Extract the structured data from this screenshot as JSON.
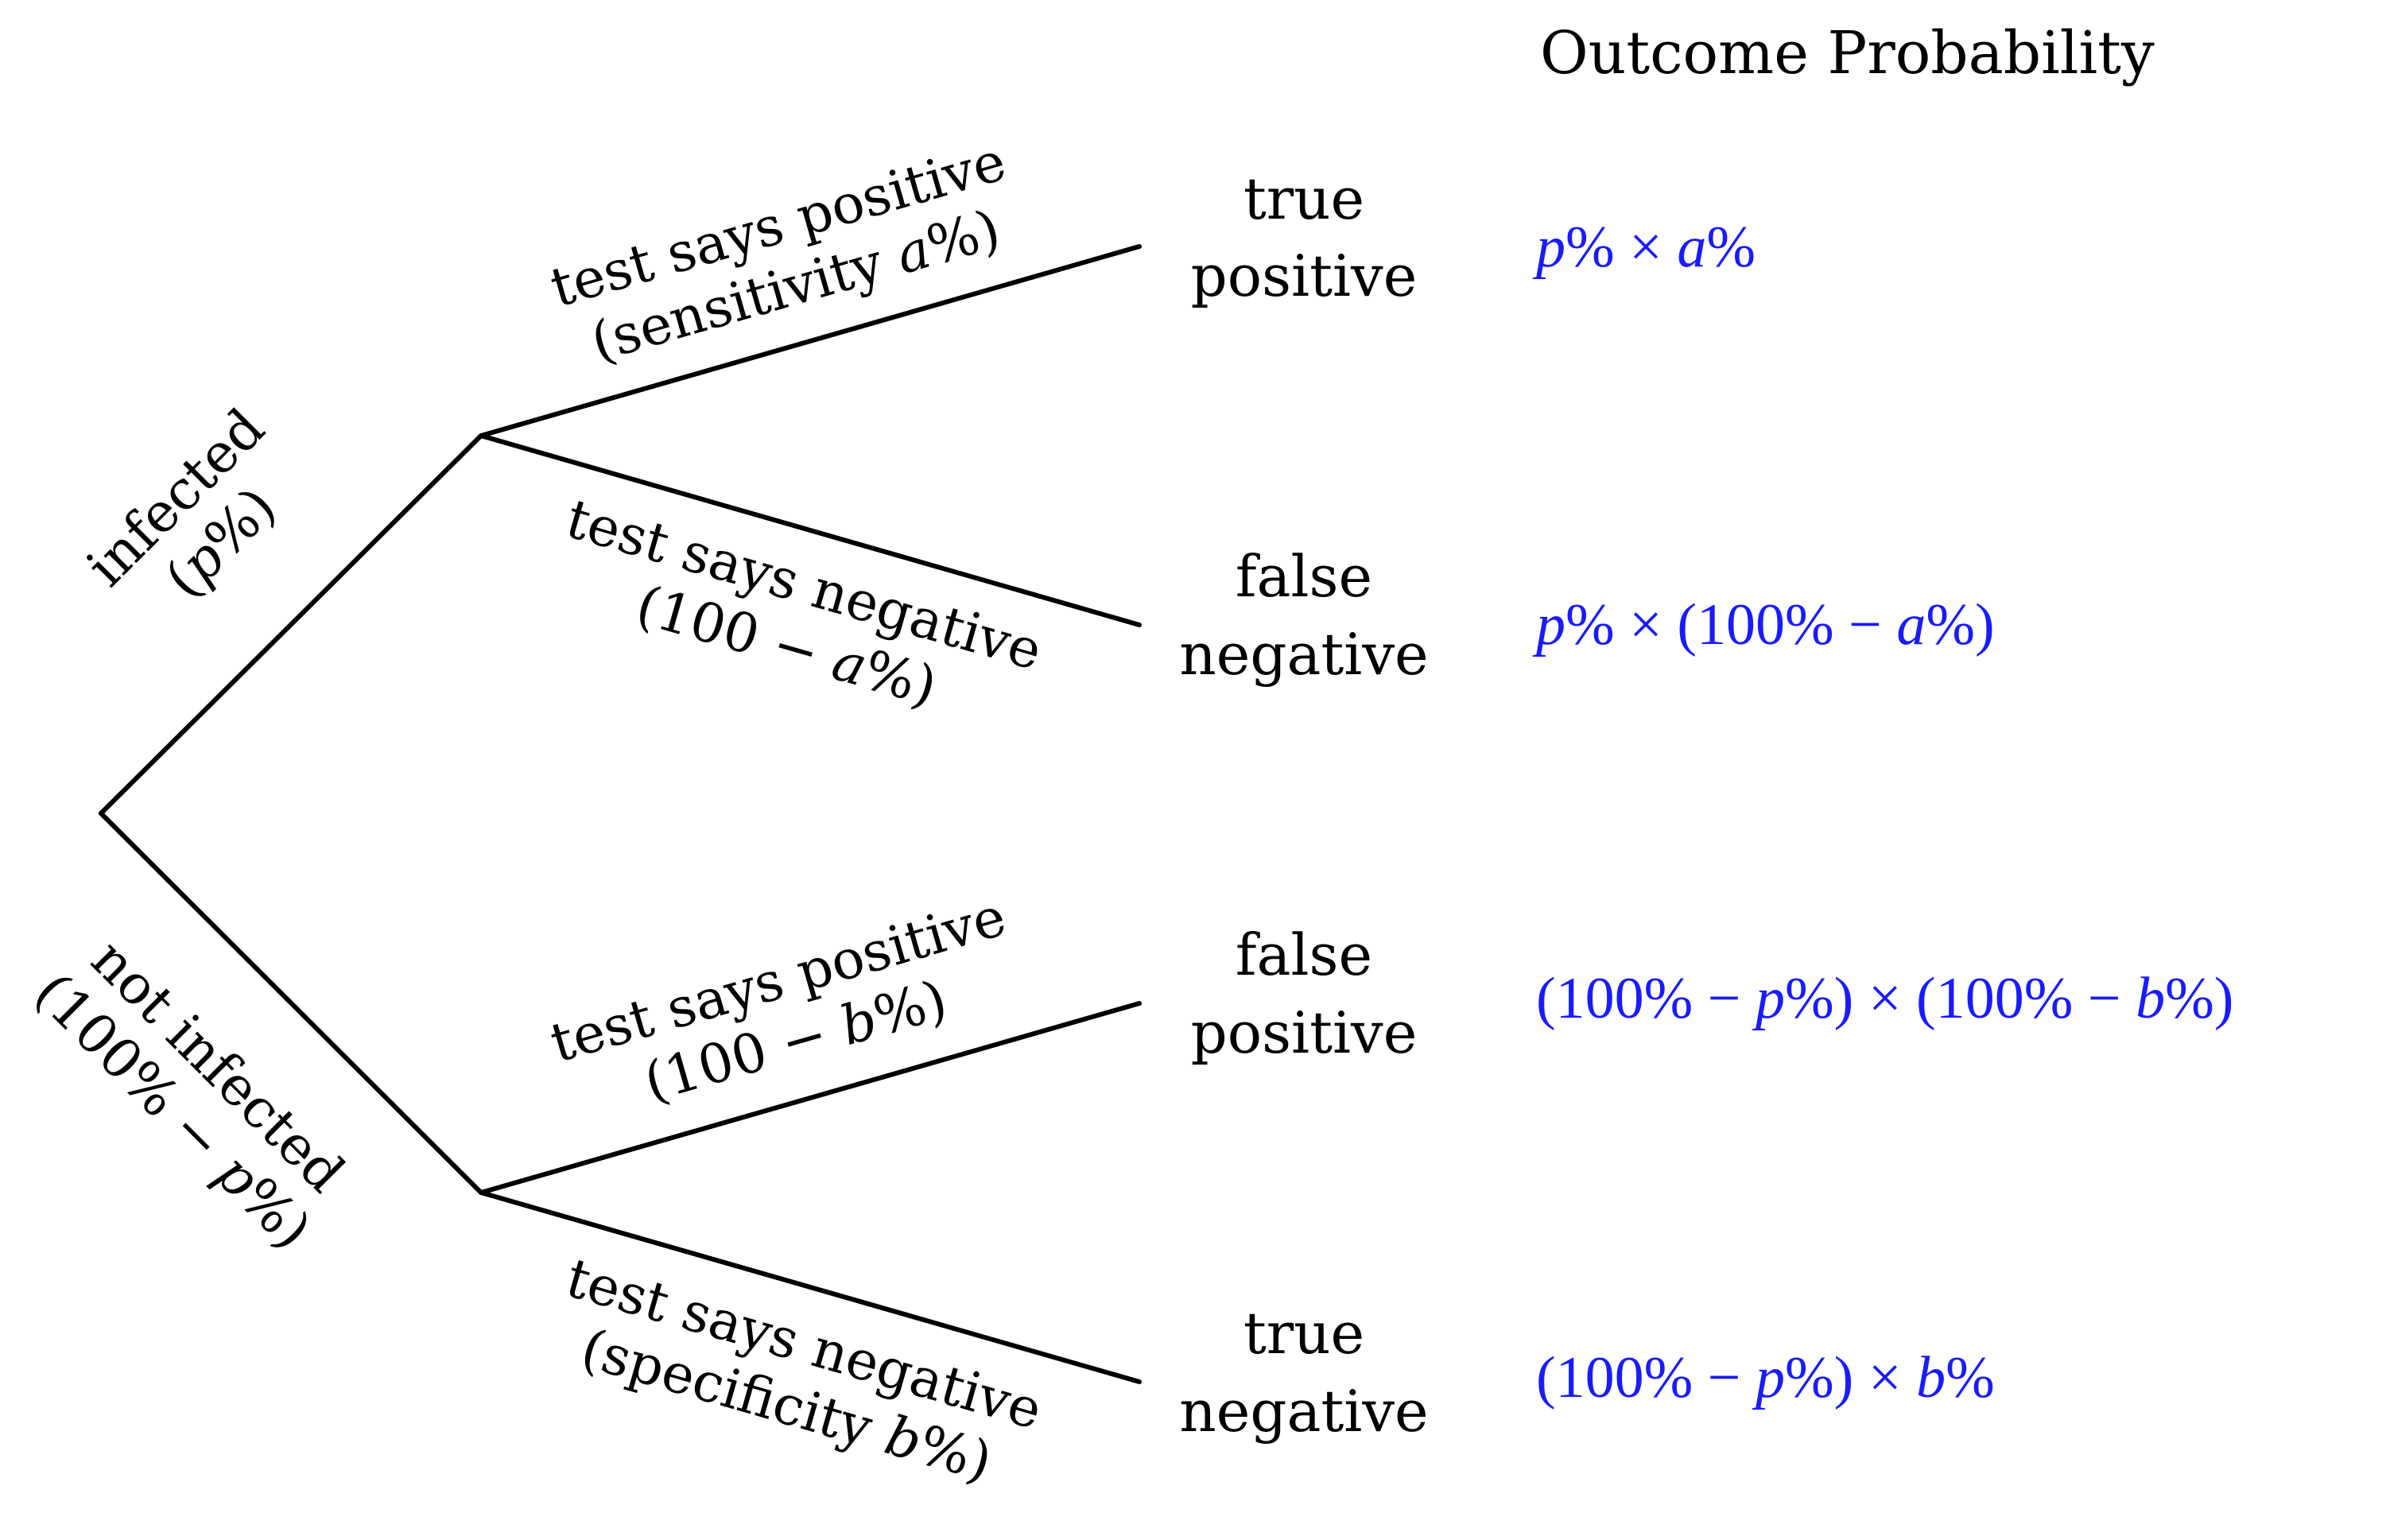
{
  "colors": {
    "probability": "#1a1aff",
    "lines": "#000000",
    "text": "#000000"
  },
  "header": {
    "title": "Outcome Probability"
  },
  "branches": {
    "infected": {
      "line1": "infected",
      "line2_open": "(",
      "line2_var": "p",
      "line2_close": "%)"
    },
    "not_infected": {
      "line1": "not infected",
      "line2_open": "(100% − ",
      "line2_var": "p",
      "line2_close": "%)"
    },
    "inf_pos": {
      "line1": "test says positive",
      "line2_open": "(sensitivity ",
      "line2_var": "a",
      "line2_close": "%)"
    },
    "inf_neg": {
      "line1": "test says negative",
      "line2_open": "(100 − ",
      "line2_var": "a",
      "line2_close": "%)"
    },
    "not_pos": {
      "line1": "test says positive",
      "line2_open": "(100 − ",
      "line2_var": "b",
      "line2_close": "%)"
    },
    "not_neg": {
      "line1": "test says negative",
      "line2_open": "(specificity ",
      "line2_var": "b",
      "line2_close": "%)"
    }
  },
  "outcomes": [
    {
      "line1": "true",
      "line2": "positive"
    },
    {
      "line1": "false",
      "line2": "negative"
    },
    {
      "line1": "false",
      "line2": "positive"
    },
    {
      "line1": "true",
      "line2": "negative"
    }
  ],
  "probabilities": [
    {
      "p": "p",
      "t1": "% × ",
      "a": "a",
      "t2": "%"
    },
    {
      "p": "p",
      "t1": "% × (100% − ",
      "a": "a",
      "t2": "%)"
    },
    {
      "t0": "(100% − ",
      "p": "p",
      "t1": "%) × (100% − ",
      "b": "b",
      "t2": "%)"
    },
    {
      "t0": "(100% − ",
      "p": "p",
      "t1": "%) × ",
      "b": "b",
      "t2": "%"
    }
  ]
}
